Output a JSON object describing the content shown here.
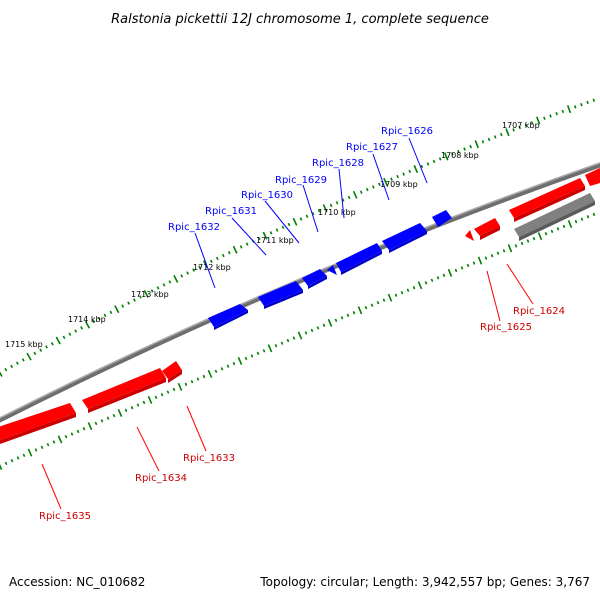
{
  "title": "Ralstonia pickettii 12J chromosome 1, complete sequence",
  "footer": {
    "accession": "Accession: NC_010682",
    "summary": "Topology: circular; Length: 3,942,557 bp; Genes: 3,767"
  },
  "colors": {
    "forward_gene": "#0000ff",
    "reverse_gene": "#ff0000",
    "other_feature": "#808080",
    "backbone": "#808080",
    "tick": "#008000",
    "label_text": "#000000"
  },
  "scale": {
    "unit": "kbp",
    "ticks": [
      {
        "label": "1707 kbp"
      },
      {
        "label": "1708 kbp"
      },
      {
        "label": "1709 kbp"
      },
      {
        "label": "1710 kbp"
      },
      {
        "label": "1711 kbp"
      },
      {
        "label": "1712 kbp"
      },
      {
        "label": "1713 kbp"
      },
      {
        "label": "1714 kbp"
      },
      {
        "label": "1715 kbp"
      }
    ]
  },
  "genes_forward": [
    {
      "name": "Rpic_1626"
    },
    {
      "name": "Rpic_1627"
    },
    {
      "name": "Rpic_1628"
    },
    {
      "name": "Rpic_1629"
    },
    {
      "name": "Rpic_1630"
    },
    {
      "name": "Rpic_1631"
    },
    {
      "name": "Rpic_1632"
    }
  ],
  "genes_reverse": [
    {
      "name": "Rpic_1624"
    },
    {
      "name": "Rpic_1625"
    },
    {
      "name": "Rpic_1633"
    },
    {
      "name": "Rpic_1634"
    },
    {
      "name": "Rpic_1635"
    }
  ]
}
